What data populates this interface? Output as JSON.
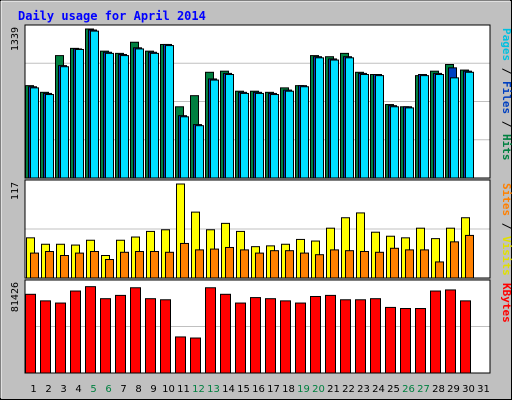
{
  "chart_data": {
    "type": "bar",
    "title": "Daily usage for April 2014",
    "days": [
      "1",
      "2",
      "3",
      "4",
      "5",
      "6",
      "7",
      "8",
      "9",
      "10",
      "11",
      "12",
      "13",
      "14",
      "15",
      "16",
      "17",
      "18",
      "19",
      "20",
      "21",
      "22",
      "23",
      "24",
      "25",
      "26",
      "27",
      "28",
      "29",
      "30",
      "31"
    ],
    "weekend_days": [
      "5",
      "6",
      "12",
      "13",
      "19",
      "20",
      "26",
      "27"
    ],
    "panels": {
      "pages_files_hits": {
        "max_label": "1339",
        "max": 1339,
        "series": [
          {
            "name": "Hits",
            "color": "#008040",
            "values": [
              830,
              770,
              1100,
              1165,
              1339,
              1140,
              1120,
              1220,
              1140,
              1200,
              640,
              740,
              950,
              960,
              780,
              780,
              770,
              810,
              830,
              1100,
              1090,
              1120,
              950,
              930,
              660,
              640,
              920,
              960,
              1020,
              970,
              0
            ]
          },
          {
            "name": "Files",
            "color": "#0040c0",
            "values": [
              820,
              760,
              1010,
              1160,
              1330,
              1130,
              1110,
              1170,
              1130,
              1200,
              560,
              480,
              890,
              940,
              770,
              770,
              760,
              790,
              830,
              1090,
              1070,
              1090,
              940,
              930,
              650,
              640,
              930,
              940,
              990,
              960,
              0
            ]
          },
          {
            "name": "Pages",
            "color": "#00e0ff",
            "values": [
              810,
              750,
              1000,
              1155,
              1320,
              1120,
              1100,
              1160,
              1120,
              1190,
              550,
              470,
              880,
              930,
              760,
              760,
              750,
              780,
              820,
              1080,
              1060,
              1080,
              930,
              920,
              640,
              630,
              920,
              930,
              900,
              950,
              0
            ]
          }
        ]
      },
      "visits_sites": {
        "max_label": "117",
        "max": 117,
        "series": [
          {
            "name": "Visits",
            "color": "#ffff00",
            "values": [
              50,
              42,
              42,
              41,
              47,
              28,
              47,
              51,
              58,
              60,
              117,
              82,
              60,
              68,
              58,
              39,
              40,
              42,
              48,
              46,
              62,
              75,
              81,
              57,
              52,
              50,
              62,
              49,
              62,
              75,
              0
            ]
          },
          {
            "name": "Sites",
            "color": "#ff8000",
            "values": [
              31,
              33,
              28,
              31,
              33,
              23,
              32,
              33,
              33,
              32,
              43,
              35,
              36,
              38,
              35,
              31,
              34,
              34,
              31,
              29,
              35,
              34,
              33,
              32,
              37,
              35,
              35,
              20,
              45,
              53,
              0
            ]
          }
        ]
      },
      "kbytes": {
        "max_label": "81426",
        "max": 81426,
        "series": [
          {
            "name": "KBytes",
            "color": "#ff0000",
            "values": [
              72000,
              66000,
              64000,
              75000,
              79000,
              68000,
              71000,
              78000,
              68000,
              67000,
              33000,
              32000,
              78000,
              72000,
              64000,
              69000,
              68000,
              66000,
              64000,
              70000,
              71000,
              67000,
              67000,
              68000,
              60000,
              59000,
              59000,
              75000,
              76000,
              66000,
              0
            ]
          }
        ]
      }
    },
    "right_labels": {
      "top": [
        {
          "text": "Pages",
          "color": "#00c0e0"
        },
        {
          "text": " / ",
          "color": "#000000"
        },
        {
          "text": "Files",
          "color": "#0040c0"
        },
        {
          "text": " / ",
          "color": "#000000"
        },
        {
          "text": "Hits",
          "color": "#008040"
        }
      ],
      "middle": [
        {
          "text": "Sites",
          "color": "#ff8000"
        },
        {
          "text": " / ",
          "color": "#000000"
        },
        {
          "text": "Visits",
          "color": "#e0e000"
        }
      ],
      "bottom": [
        {
          "text": "KBytes",
          "color": "#ff0000"
        }
      ]
    },
    "colors": {
      "background": "#c0c0c0",
      "plot_background": "#ffffff",
      "title": "#0000ff",
      "weekend_day": "#008040",
      "weekday": "#000000",
      "grid": "#c0c0c0"
    }
  }
}
